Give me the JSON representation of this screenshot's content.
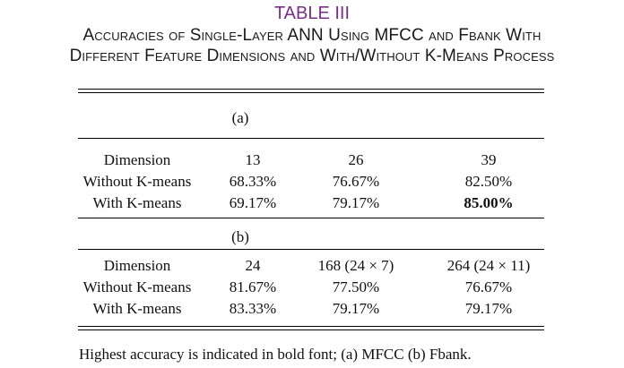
{
  "table": {
    "label": "TABLE III",
    "caption_line_1": "Accuracies of Single-Layer ANN Using MFCC and Fbank With",
    "caption_line_2": "Different Feature Dimensions and With/Without K-Means Process",
    "sections": [
      {
        "label": "(a)",
        "header": [
          "Dimension",
          "13",
          "26",
          "39"
        ],
        "rows": [
          [
            "Without K-means",
            "68.33%",
            "76.67%",
            "82.50%"
          ],
          [
            "With K-means",
            "69.17%",
            "79.17%",
            "85.00%"
          ]
        ],
        "highlight": "85.00%"
      },
      {
        "label": "(b)",
        "header": [
          "Dimension",
          "24",
          "168 (24 × 7)",
          "264 (24 × 11)"
        ],
        "rows": [
          [
            "Without K-means",
            "81.67%",
            "77.50%",
            "76.67%"
          ],
          [
            "With K-means",
            "83.33%",
            "79.17%",
            "79.17%"
          ]
        ]
      }
    ],
    "footnote": "Highest accuracy is indicated in bold font; (a) MFCC (b) Fbank."
  },
  "colors": {
    "label": "#7a2e8a",
    "text": "#111111",
    "rule": "#000000"
  }
}
